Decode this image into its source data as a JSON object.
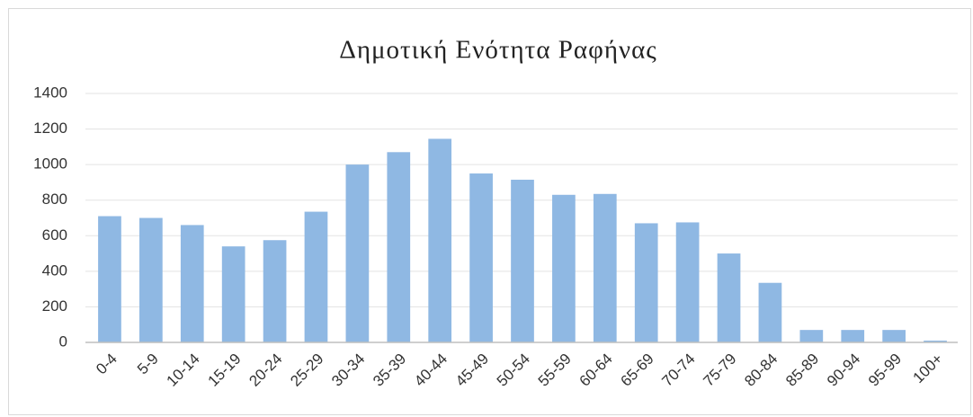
{
  "chart_data": {
    "type": "bar",
    "title": "Δημοτική Ενότητα Ραφήνας",
    "categories": [
      "0-4",
      "5-9",
      "10-14",
      "15-19",
      "20-24",
      "25-29",
      "30-34",
      "35-39",
      "40-44",
      "45-49",
      "50-54",
      "55-59",
      "60-64",
      "65-69",
      "70-74",
      "75-79",
      "80-84",
      "85-89",
      "90-94",
      "95-99",
      "100+"
    ],
    "values": [
      710,
      700,
      660,
      540,
      575,
      735,
      1000,
      1070,
      1145,
      950,
      915,
      830,
      835,
      670,
      675,
      500,
      335,
      70,
      70,
      70,
      10
    ],
    "color": "#8fb8e3",
    "ylim": [
      0,
      1400
    ],
    "yticks": [
      0,
      200,
      400,
      600,
      800,
      1000,
      1200,
      1400
    ],
    "grid": true
  }
}
